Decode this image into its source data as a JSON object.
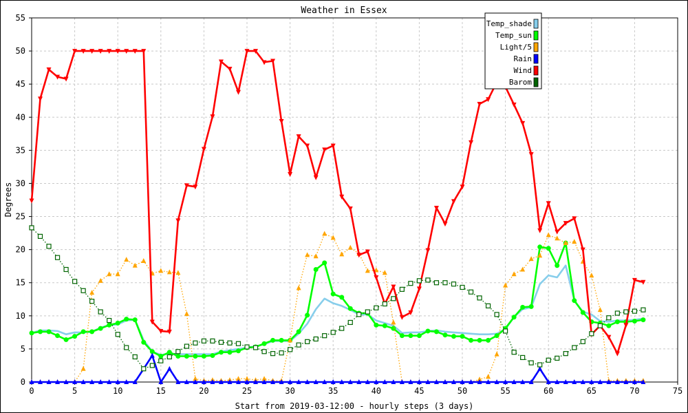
{
  "chart_data": {
    "type": "line",
    "title": "Weather in Essex",
    "xlabel": "Start from 2019-03-12:00 - hourly steps (3 days)",
    "ylabel": "Degrees",
    "xlim": [
      0,
      75
    ],
    "ylim": [
      0,
      55
    ],
    "x_ticks": [
      0,
      5,
      10,
      15,
      20,
      25,
      30,
      35,
      40,
      45,
      50,
      55,
      60,
      65,
      70,
      75
    ],
    "y_ticks": [
      0,
      5,
      10,
      15,
      20,
      25,
      30,
      35,
      40,
      45,
      50,
      55
    ],
    "grid": true,
    "legend_position": "top-right",
    "series": [
      {
        "name": "Temp_shade",
        "color": "#87ceeb",
        "marker": "none",
        "dash": "solid",
        "values": [
          7.4,
          7.8,
          7.8,
          7.7,
          7.2,
          7.5,
          7.5,
          7.6,
          8.2,
          8.6,
          8.7,
          9.3,
          9.4,
          6.3,
          4.6,
          4.1,
          4.3,
          4.2,
          4.2,
          4.2,
          4.2,
          4.2,
          4.6,
          4.8,
          5.0,
          5.2,
          5.4,
          5.7,
          6.2,
          6.2,
          6.2,
          7.3,
          8.8,
          11.0,
          12.6,
          11.9,
          11.5,
          10.9,
          10.2,
          10.2,
          9.3,
          8.9,
          8.5,
          7.4,
          7.5,
          7.5,
          7.7,
          7.8,
          7.6,
          7.5,
          7.4,
          7.3,
          7.2,
          7.2,
          7.3,
          8.0,
          9.8,
          11.0,
          11.3,
          14.8,
          16.1,
          15.8,
          17.6,
          12.3,
          10.6,
          10.2,
          9.2,
          9.1,
          9.3,
          9.3,
          9.4,
          9.6
        ]
      },
      {
        "name": "Temp_sun",
        "color": "#00ff00",
        "marker": "circle",
        "dash": "solid",
        "values": [
          7.4,
          7.6,
          7.6,
          7.0,
          6.4,
          6.9,
          7.6,
          7.6,
          8.1,
          8.6,
          8.9,
          9.5,
          9.4,
          6.0,
          4.6,
          3.9,
          4.5,
          3.9,
          3.9,
          3.9,
          3.9,
          4.0,
          4.5,
          4.5,
          4.7,
          5.2,
          5.3,
          5.8,
          6.3,
          6.3,
          6.3,
          7.6,
          10.1,
          17.0,
          18.0,
          13.3,
          12.8,
          11.1,
          10.4,
          10.4,
          8.6,
          8.5,
          8.1,
          7.0,
          7.0,
          7.0,
          7.7,
          7.6,
          7.1,
          6.9,
          6.9,
          6.3,
          6.3,
          6.3,
          7.0,
          8.1,
          9.8,
          11.3,
          11.4,
          20.4,
          20.2,
          17.6,
          21.0,
          12.3,
          10.5,
          9.1,
          8.9,
          8.5,
          9.1,
          9.1,
          9.2,
          9.4
        ]
      },
      {
        "name": "Light/5",
        "color": "#ffa500",
        "marker": "triangle",
        "dash": "dotted",
        "values": [
          0,
          0,
          0,
          0,
          0,
          0,
          2.0,
          13.5,
          15.3,
          16.3,
          16.3,
          18.5,
          17.6,
          18.3,
          16.4,
          16.8,
          16.6,
          16.5,
          10.3,
          0.5,
          0.2,
          0.3,
          0.2,
          0.3,
          0.5,
          0.5,
          0.3,
          0.5,
          0.2,
          0.2,
          6.3,
          14.2,
          19.2,
          19.0,
          22.4,
          21.8,
          19.3,
          20.3,
          19.4,
          16.8,
          16.9,
          16.5,
          9.0,
          0,
          0,
          0,
          0,
          0,
          0,
          0,
          0,
          0,
          0.4,
          0.8,
          4.2,
          14.6,
          16.3,
          17.0,
          18.6,
          19.1,
          22.2,
          21.7,
          21.0,
          21.2,
          18.2,
          16.1,
          10.9,
          0.2,
          0.2,
          0.2,
          0.2,
          0.2
        ]
      },
      {
        "name": "Rain",
        "color": "#0000ff",
        "marker": "triangle",
        "dash": "solid",
        "values": [
          0,
          0,
          0,
          0,
          0,
          0,
          0,
          0,
          0,
          0,
          0,
          0,
          0,
          2.0,
          4.0,
          0,
          2.0,
          0,
          0,
          0,
          0,
          0,
          0,
          0,
          0,
          0,
          0,
          0,
          0,
          0,
          0,
          0,
          0,
          0,
          0,
          0,
          0,
          0,
          0,
          0,
          0,
          0,
          0,
          0,
          0,
          0,
          0,
          0,
          0,
          0,
          0,
          0,
          0,
          0,
          0,
          0,
          0,
          0,
          0,
          2.0,
          0,
          0,
          0,
          0,
          0,
          0,
          0,
          0,
          0,
          0,
          0,
          0
        ]
      },
      {
        "name": "Wind",
        "color": "#ff0000",
        "marker": "triangle-down",
        "dash": "solid",
        "values": [
          27.4,
          42.8,
          47.2,
          46.1,
          45.8,
          50.0,
          50.0,
          50.0,
          50.0,
          50.0,
          50.0,
          50.0,
          50.0,
          50.0,
          9.1,
          7.7,
          7.6,
          24.4,
          29.7,
          29.5,
          35.2,
          40.1,
          48.4,
          47.3,
          43.8,
          50.0,
          50.0,
          48.3,
          48.5,
          39.4,
          31.4,
          37.1,
          35.7,
          30.9,
          35.1,
          35.7,
          28.0,
          26.2,
          19.2,
          19.7,
          15.8,
          11.8,
          14.4,
          9.8,
          10.5,
          14.1,
          19.9,
          26.3,
          23.9,
          27.3,
          29.5,
          36.2,
          42.0,
          42.7,
          45.3,
          44.6,
          41.9,
          39.1,
          34.4,
          22.9,
          27.0,
          22.7,
          24.0,
          24.7,
          20.0,
          7.2,
          8.5,
          6.8,
          4.3,
          8.6,
          15.4,
          15.1
        ]
      },
      {
        "name": "Barom",
        "color": "#006400",
        "marker": "square",
        "dash": "dotted",
        "values": [
          23.3,
          22.0,
          20.5,
          18.8,
          17.0,
          15.2,
          13.8,
          12.2,
          10.6,
          9.3,
          7.2,
          5.2,
          3.8,
          2.0,
          2.5,
          3.2,
          3.8,
          4.6,
          5.4,
          5.9,
          6.2,
          6.2,
          6.0,
          5.9,
          5.8,
          5.3,
          5.2,
          4.6,
          4.3,
          4.4,
          4.9,
          5.6,
          6.1,
          6.5,
          7.0,
          7.5,
          8.1,
          9.0,
          10.2,
          10.6,
          11.2,
          11.8,
          12.6,
          14.0,
          14.9,
          15.3,
          15.4,
          15.0,
          15.0,
          14.8,
          14.3,
          13.6,
          12.7,
          11.5,
          10.2,
          7.7,
          4.5,
          3.7,
          2.9,
          2.6,
          3.3,
          3.6,
          4.3,
          5.2,
          6.1,
          7.3,
          8.5,
          9.7,
          10.4,
          10.6,
          10.7,
          10.9
        ]
      }
    ]
  }
}
